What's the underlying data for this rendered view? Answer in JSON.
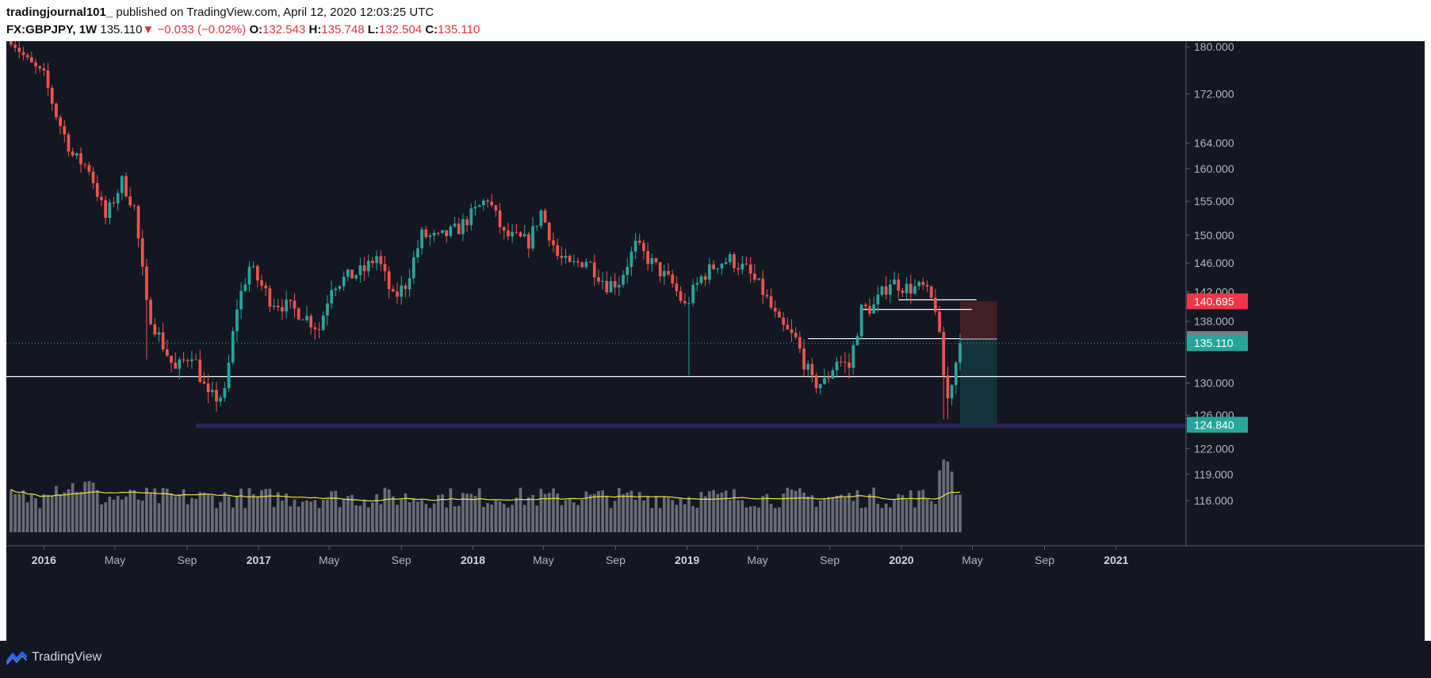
{
  "header": {
    "author": "tradingjournal101_",
    "published_text": "published on TradingView.com, April 12, 2020 12:03:25 UTC",
    "symbol": "FX:GBPJPY,",
    "interval": "1W",
    "last": "135.110",
    "change_arrow": "▼",
    "change": "−0.033 (−0.02%)",
    "o_label": "O:",
    "o": "132.543",
    "h_label": "H:",
    "h": "135.748",
    "l_label": "L:",
    "l": "132.504",
    "c_label": "C:",
    "c": "135.110"
  },
  "footer": {
    "brand": "TradingView"
  },
  "colors": {
    "bg": "#131722",
    "up": "#26a69a",
    "down": "#ef5350",
    "volume": "#787b86",
    "ma": "#f0e040",
    "zone": "#2b2557",
    "price_current": "#26a69a",
    "price_entry": "#787b86",
    "price_stop": "#f23645",
    "price_target": "#26a69a",
    "risk_box": "#4a1f26",
    "reward_box": "#13363b"
  },
  "chart_data": {
    "type": "candlestick",
    "symbol": "FX:GBPJPY",
    "interval": "1W",
    "y_axis": {
      "scale": "log",
      "ticks": [
        "180.000",
        "172.000",
        "164.000",
        "160.000",
        "155.000",
        "150.000",
        "146.000",
        "142.000",
        "138.000",
        "130.000",
        "126.000",
        "122.000",
        "119.000",
        "116.000"
      ],
      "range": [
        112.5,
        181
      ]
    },
    "x_axis": {
      "labels": [
        {
          "text": "2016",
          "date": "2016-01-01",
          "bold": true
        },
        {
          "text": "May",
          "date": "2016-05-01",
          "bold": false
        },
        {
          "text": "Sep",
          "date": "2016-09-01",
          "bold": false
        },
        {
          "text": "2017",
          "date": "2017-01-01",
          "bold": true
        },
        {
          "text": "May",
          "date": "2017-05-01",
          "bold": false
        },
        {
          "text": "Sep",
          "date": "2017-09-01",
          "bold": false
        },
        {
          "text": "2018",
          "date": "2018-01-01",
          "bold": true
        },
        {
          "text": "May",
          "date": "2018-05-01",
          "bold": false
        },
        {
          "text": "Sep",
          "date": "2018-09-01",
          "bold": false
        },
        {
          "text": "2019",
          "date": "2019-01-01",
          "bold": true
        },
        {
          "text": "May",
          "date": "2019-05-01",
          "bold": false
        },
        {
          "text": "Sep",
          "date": "2019-09-01",
          "bold": false
        },
        {
          "text": "2020",
          "date": "2020-01-01",
          "bold": true
        },
        {
          "text": "May",
          "date": "2020-05-01",
          "bold": false
        },
        {
          "text": "Sep",
          "date": "2020-09-01",
          "bold": false
        },
        {
          "text": "2021",
          "date": "2021-01-01",
          "bold": true
        }
      ],
      "range": [
        "2015-10-29",
        "2021-04-30"
      ]
    },
    "first_candle_date": "2015-11-06",
    "close_path": [
      [
        "2015-11-06",
        181.5
      ],
      [
        "2015-12-04",
        177.5
      ],
      [
        "2016-01-01",
        175
      ],
      [
        "2016-01-22",
        168.5
      ],
      [
        "2016-02-19",
        162
      ],
      [
        "2016-03-18",
        160
      ],
      [
        "2016-04-15",
        152.5
      ],
      [
        "2016-05-13",
        158
      ],
      [
        "2016-06-03",
        154
      ],
      [
        "2016-06-24",
        140
      ],
      [
        "2016-07-15",
        136
      ],
      [
        "2016-08-12",
        131.5
      ],
      [
        "2016-09-09",
        134
      ],
      [
        "2016-10-07",
        128
      ],
      [
        "2016-11-04",
        128.5
      ],
      [
        "2016-11-25",
        140
      ],
      [
        "2016-12-16",
        145.5
      ],
      [
        "2017-01-20",
        141
      ],
      [
        "2017-02-17",
        140
      ],
      [
        "2017-03-17",
        139
      ],
      [
        "2017-04-14",
        137
      ],
      [
        "2017-05-05",
        143
      ],
      [
        "2017-06-02",
        144
      ],
      [
        "2017-06-30",
        145
      ],
      [
        "2017-07-21",
        147
      ],
      [
        "2017-08-18",
        141
      ],
      [
        "2017-09-08",
        143
      ],
      [
        "2017-10-06",
        150
      ],
      [
        "2017-11-03",
        149.5
      ],
      [
        "2017-12-08",
        151
      ],
      [
        "2018-01-26",
        155.5
      ],
      [
        "2018-02-23",
        150
      ],
      [
        "2018-04-06",
        149
      ],
      [
        "2018-04-27",
        153.5
      ],
      [
        "2018-05-25",
        147
      ],
      [
        "2018-06-15",
        145.5
      ],
      [
        "2018-07-13",
        146.5
      ],
      [
        "2018-08-17",
        143
      ],
      [
        "2018-09-07",
        143.5
      ],
      [
        "2018-10-05",
        148.5
      ],
      [
        "2018-11-02",
        146
      ],
      [
        "2018-12-07",
        143
      ],
      [
        "2018-12-28",
        140
      ],
      [
        "2019-01-25",
        144
      ],
      [
        "2019-02-22",
        146
      ],
      [
        "2019-03-15",
        146.5
      ],
      [
        "2019-04-12",
        145
      ],
      [
        "2019-05-10",
        142
      ],
      [
        "2019-06-07",
        137.5
      ],
      [
        "2019-07-05",
        135.5
      ],
      [
        "2019-08-02",
        130
      ],
      [
        "2019-08-23",
        130
      ],
      [
        "2019-09-13",
        133
      ],
      [
        "2019-10-04",
        132
      ],
      [
        "2019-10-25",
        139.5
      ],
      [
        "2019-11-15",
        140
      ],
      [
        "2019-12-13",
        143.5
      ],
      [
        "2020-01-10",
        142.5
      ],
      [
        "2020-02-07",
        142.5
      ],
      [
        "2020-02-28",
        140
      ],
      [
        "2020-03-13",
        131
      ],
      [
        "2020-03-20",
        128
      ],
      [
        "2020-04-10",
        135.11
      ]
    ],
    "volume_ma_label": "volume moving average",
    "horizontal_lines": [
      {
        "type": "level",
        "value": 130.8,
        "color": "#ffffff",
        "from": "2015-10-29",
        "to": "2021-04-30"
      },
      {
        "type": "level",
        "value": 140.9,
        "color": "#ffffff",
        "from": "2019-12-27",
        "to": "2020-05-08"
      },
      {
        "type": "level",
        "value": 139.6,
        "color": "#ffffff",
        "from": "2019-10-25",
        "to": "2020-04-30"
      },
      {
        "type": "level",
        "value": 135.7,
        "color": "#ffffff",
        "from": "2019-07-26",
        "to": "2020-04-10"
      },
      {
        "type": "last_price_dotted",
        "value": 135.11
      }
    ],
    "support_zone": {
      "from": "2016-09-16",
      "to": "2021-04-30",
      "low": 124.45,
      "high": 125.0
    },
    "position_tool": {
      "type": "short",
      "start": "2020-04-10",
      "end": "2020-06-12",
      "entry": 135.65,
      "stop": 140.695,
      "target": 124.84
    },
    "price_labels": [
      {
        "text": "140.695",
        "value": 140.695,
        "role": "stop"
      },
      {
        "text": "135.650",
        "value": 135.65,
        "role": "entry"
      },
      {
        "text": "135.110",
        "value": 135.11,
        "role": "current"
      },
      {
        "text": "124.840",
        "value": 124.84,
        "role": "target"
      }
    ]
  }
}
